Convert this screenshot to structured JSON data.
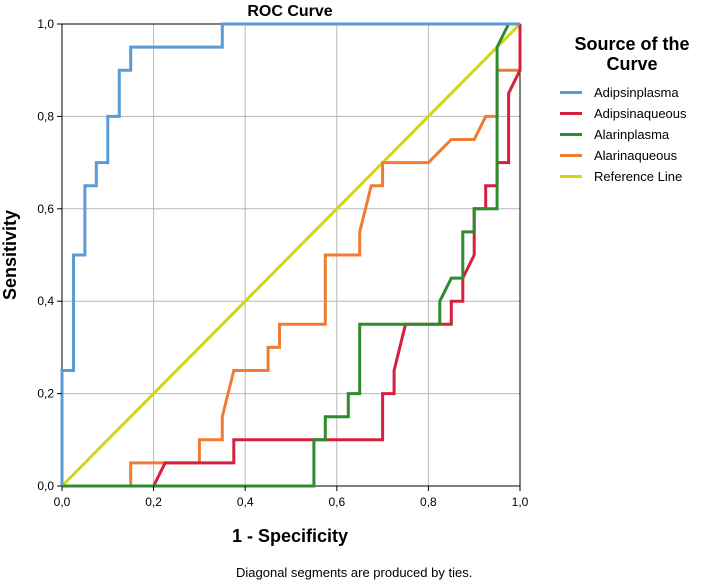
{
  "chart_data": {
    "type": "line",
    "title": "ROC Curve",
    "xlabel": "1 - Specificity",
    "ylabel": "Sensitivity",
    "xlim": [
      0,
      1
    ],
    "ylim": [
      0,
      1
    ],
    "x_ticks": [
      "0,0",
      "0,2",
      "0,4",
      "0,6",
      "0,8",
      "1,0"
    ],
    "y_ticks": [
      "0,0",
      "0,2",
      "0,4",
      "0,6",
      "0,8",
      "1,0"
    ],
    "grid": true,
    "legend_title": [
      "Source of the",
      "Curve"
    ],
    "footnote": "Diagonal segments are produced by ties.",
    "series": [
      {
        "name": "Adipsinplasma",
        "color": "#5b9bd5",
        "points": [
          [
            0,
            0
          ],
          [
            0,
            0.25
          ],
          [
            0.025,
            0.25
          ],
          [
            0.025,
            0.5
          ],
          [
            0.05,
            0.5
          ],
          [
            0.05,
            0.65
          ],
          [
            0.075,
            0.65
          ],
          [
            0.075,
            0.7
          ],
          [
            0.1,
            0.7
          ],
          [
            0.1,
            0.8
          ],
          [
            0.125,
            0.8
          ],
          [
            0.125,
            0.9
          ],
          [
            0.15,
            0.9
          ],
          [
            0.15,
            0.95
          ],
          [
            0.35,
            0.95
          ],
          [
            0.35,
            1.0
          ],
          [
            1.0,
            1.0
          ]
        ]
      },
      {
        "name": "Adipsinaqueous",
        "color": "#d6203f",
        "points": [
          [
            0,
            0
          ],
          [
            0.2,
            0
          ],
          [
            0.225,
            0.05
          ],
          [
            0.375,
            0.05
          ],
          [
            0.375,
            0.1
          ],
          [
            0.7,
            0.1
          ],
          [
            0.7,
            0.2
          ],
          [
            0.725,
            0.2
          ],
          [
            0.725,
            0.25
          ],
          [
            0.75,
            0.35
          ],
          [
            0.85,
            0.35
          ],
          [
            0.85,
            0.4
          ],
          [
            0.875,
            0.4
          ],
          [
            0.875,
            0.45
          ],
          [
            0.9,
            0.5
          ],
          [
            0.9,
            0.6
          ],
          [
            0.925,
            0.6
          ],
          [
            0.925,
            0.65
          ],
          [
            0.95,
            0.65
          ],
          [
            0.95,
            0.7
          ],
          [
            0.975,
            0.7
          ],
          [
            0.975,
            0.85
          ],
          [
            1.0,
            0.9
          ],
          [
            1.0,
            1.0
          ]
        ]
      },
      {
        "name": "Alarinplasma",
        "color": "#2e8b2e",
        "points": [
          [
            0,
            0
          ],
          [
            0.55,
            0
          ],
          [
            0.55,
            0.1
          ],
          [
            0.575,
            0.1
          ],
          [
            0.575,
            0.15
          ],
          [
            0.625,
            0.15
          ],
          [
            0.625,
            0.2
          ],
          [
            0.65,
            0.2
          ],
          [
            0.65,
            0.35
          ],
          [
            0.825,
            0.35
          ],
          [
            0.825,
            0.4
          ],
          [
            0.85,
            0.45
          ],
          [
            0.875,
            0.45
          ],
          [
            0.875,
            0.55
          ],
          [
            0.9,
            0.55
          ],
          [
            0.9,
            0.6
          ],
          [
            0.95,
            0.6
          ],
          [
            0.95,
            0.95
          ],
          [
            0.975,
            1.0
          ],
          [
            1.0,
            1.0
          ]
        ]
      },
      {
        "name": "Alarinaqueous",
        "color": "#f07c33",
        "points": [
          [
            0,
            0
          ],
          [
            0.15,
            0
          ],
          [
            0.15,
            0.05
          ],
          [
            0.3,
            0.05
          ],
          [
            0.3,
            0.1
          ],
          [
            0.35,
            0.1
          ],
          [
            0.35,
            0.15
          ],
          [
            0.375,
            0.25
          ],
          [
            0.45,
            0.25
          ],
          [
            0.45,
            0.3
          ],
          [
            0.475,
            0.3
          ],
          [
            0.475,
            0.35
          ],
          [
            0.575,
            0.35
          ],
          [
            0.575,
            0.5
          ],
          [
            0.65,
            0.5
          ],
          [
            0.65,
            0.55
          ],
          [
            0.675,
            0.65
          ],
          [
            0.7,
            0.65
          ],
          [
            0.7,
            0.7
          ],
          [
            0.8,
            0.7
          ],
          [
            0.85,
            0.75
          ],
          [
            0.9,
            0.75
          ],
          [
            0.925,
            0.8
          ],
          [
            0.95,
            0.8
          ],
          [
            0.95,
            0.9
          ],
          [
            1.0,
            0.9
          ],
          [
            1.0,
            1.0
          ]
        ]
      },
      {
        "name": "Reference Line",
        "color": "#d4d41a",
        "points": [
          [
            0,
            0
          ],
          [
            1,
            1
          ]
        ]
      }
    ]
  }
}
